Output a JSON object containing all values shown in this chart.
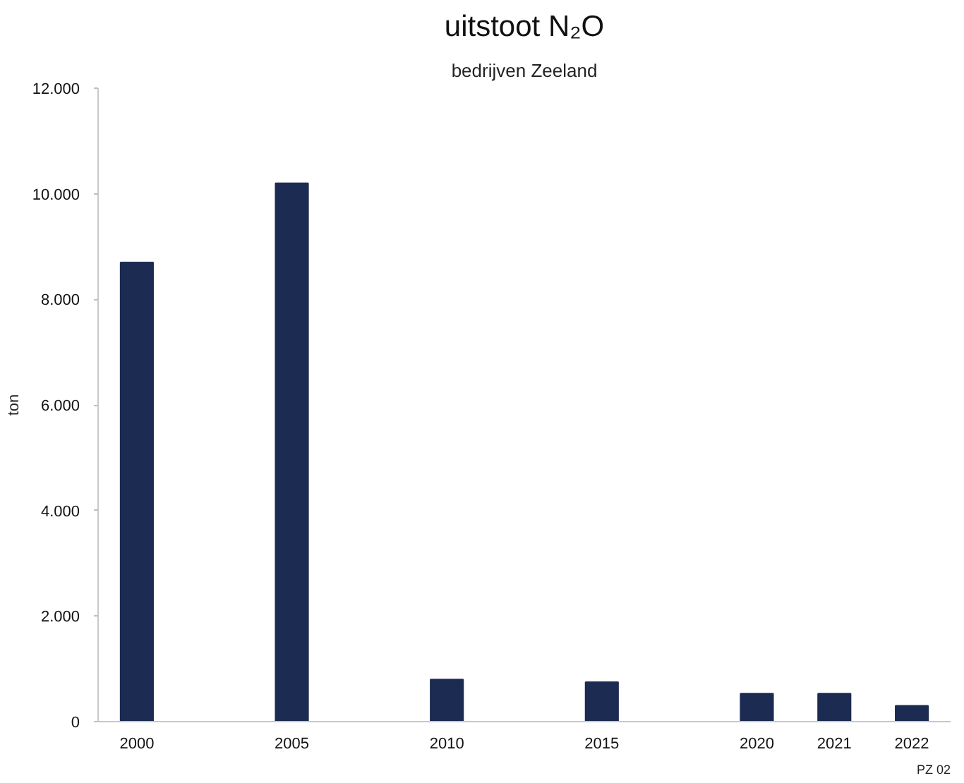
{
  "chart_data": {
    "type": "bar",
    "title": "uitstoot N₂O",
    "subtitle": "bedrijven Zeeland",
    "ylabel": "ton",
    "categories": [
      "2000",
      null,
      "2005",
      null,
      "2010",
      null,
      "2015",
      null,
      "2020",
      "2021",
      "2022"
    ],
    "values": [
      8700,
      null,
      10200,
      null,
      800,
      null,
      750,
      null,
      530,
      530,
      300
    ],
    "color": "#1c2b52",
    "ylim": [
      0,
      12000
    ],
    "yticks": [
      0,
      {
        "value": 2000,
        "label": "2.000"
      },
      {
        "value": 4000,
        "label": "4.000"
      },
      {
        "value": 6000,
        "label": "6.000"
      },
      {
        "value": 8000,
        "label": "8.000"
      },
      {
        "value": 10000,
        "label": "10.000"
      },
      {
        "value": 12000,
        "label": "12.000"
      }
    ],
    "grid": false,
    "annotations": [
      "PZ 02"
    ]
  }
}
